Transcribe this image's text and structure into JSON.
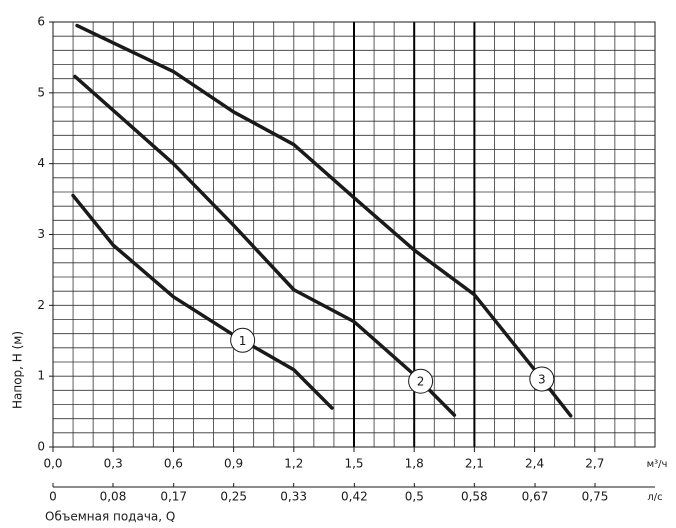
{
  "chart_data": {
    "type": "line",
    "y_label": "Напор, H (м)",
    "x_label": "Объемная подача, Q",
    "x_unit": "м³/ч",
    "x2_unit": "л/с",
    "xlim": [
      0,
      3.0
    ],
    "xticks": [
      {
        "value": 0,
        "label": "0,0"
      },
      {
        "value": 0.3,
        "label": "0,3"
      },
      {
        "value": 0.6,
        "label": "0,6"
      },
      {
        "value": 0.9,
        "label": "0,9"
      },
      {
        "value": 1.2,
        "label": "1,2"
      },
      {
        "value": 1.5,
        "label": "1,5"
      },
      {
        "value": 1.8,
        "label": "1,8"
      },
      {
        "value": 2.1,
        "label": "2,1"
      },
      {
        "value": 2.4,
        "label": "2,4"
      },
      {
        "value": 2.7,
        "label": "2,7"
      }
    ],
    "x2lim": [
      0,
      0.833
    ],
    "x2ticks": [
      0,
      {
        "value": 0.083,
        "label": "0,08"
      },
      {
        "value": 0.167,
        "label": "0,17"
      },
      {
        "value": 0.25,
        "label": "0,25"
      },
      {
        "value": 0.333,
        "label": "0,33"
      },
      {
        "value": 0.417,
        "label": "0,42"
      },
      {
        "value": 0.5,
        "label": "0,5"
      },
      {
        "value": 0.583,
        "label": "0,58"
      },
      {
        "value": 0.667,
        "label": "0,67"
      },
      {
        "value": 0.75,
        "label": "0,75"
      }
    ],
    "ylim": [
      0,
      6
    ],
    "yticks": [
      0,
      1,
      2,
      3,
      4,
      5,
      6
    ],
    "grid": true,
    "series": [
      {
        "name": "1",
        "color": "#1a1a1a",
        "x": [
          0.1,
          0.3,
          0.6,
          0.9,
          1.2,
          1.39
        ],
        "values": [
          3.55,
          2.85,
          2.12,
          1.58,
          1.09,
          0.55
        ]
      },
      {
        "name": "2",
        "color": "#1a1a1a",
        "x": [
          0.11,
          0.6,
          0.9,
          1.2,
          1.5,
          1.8,
          2.0
        ],
        "values": [
          5.23,
          4.0,
          3.13,
          2.22,
          1.77,
          1.02,
          0.45
        ]
      },
      {
        "name": "3",
        "color": "#1a1a1a",
        "x": [
          0.12,
          0.6,
          0.9,
          1.2,
          1.5,
          1.8,
          2.1,
          2.4,
          2.58
        ],
        "values": [
          5.95,
          5.3,
          4.73,
          4.27,
          3.52,
          2.78,
          2.15,
          1.09,
          0.44
        ]
      }
    ]
  }
}
